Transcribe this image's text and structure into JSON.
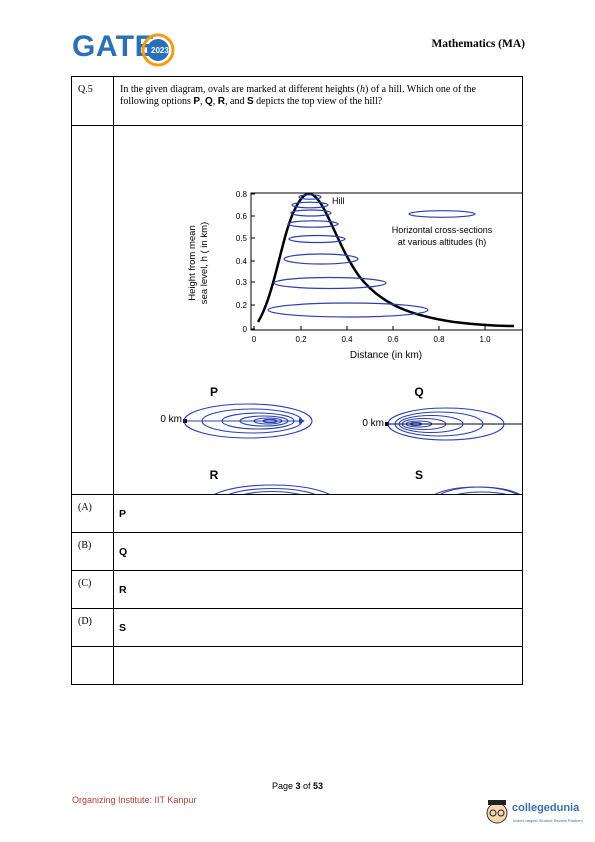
{
  "header": {
    "logo_text": "GATE",
    "logo_year": "2023",
    "subject": "Mathematics (MA)"
  },
  "question": {
    "number": "Q.5",
    "text_part1": "In the given diagram, ovals are marked at different heights (",
    "text_h": "h",
    "text_part2": ") of a hill. Which one of the following options ",
    "P": "P",
    "comma1": ", ",
    "Q": "Q",
    "comma2": ", ",
    "R": "R",
    "and": ", and ",
    "S": "S",
    "text_part3": " depicts the top view of the hill?"
  },
  "figure": {
    "hill_label": "Hill",
    "legend_line1": "Horizontal cross-sections",
    "legend_line2": "at various altitudes (h)",
    "ylabel_line1": "Height from mean",
    "ylabel_line2": "sea level, h ( in km)",
    "xlabel": "Distance (in km)",
    "yticks": [
      "0",
      "0.2",
      "0.3",
      "0.4",
      "0.5",
      "0.6",
      "0.8"
    ],
    "xticks": [
      "0",
      "0.2",
      "0.4",
      "0.6",
      "0.8",
      "1.0"
    ],
    "panels": {
      "P": "P",
      "Q": "Q",
      "R": "R",
      "S": "S"
    },
    "origin_label": "0 km"
  },
  "options": [
    {
      "label": "(A)",
      "value": "P"
    },
    {
      "label": "(B)",
      "value": "Q"
    },
    {
      "label": "(C)",
      "value": "R"
    },
    {
      "label": "(D)",
      "value": "S"
    }
  ],
  "footer": {
    "page_prefix": "Page ",
    "page_current": "3",
    "page_of": " of ",
    "page_total": "53",
    "organizer": "Organizing Institute: IIT Kanpur",
    "brand": "collegedunia",
    "brand_tag": "India's largest Student Review Platform"
  },
  "colors": {
    "accent": "#2a6fb8",
    "oval": "#2b3fb0",
    "organizer": "#c0392b"
  }
}
